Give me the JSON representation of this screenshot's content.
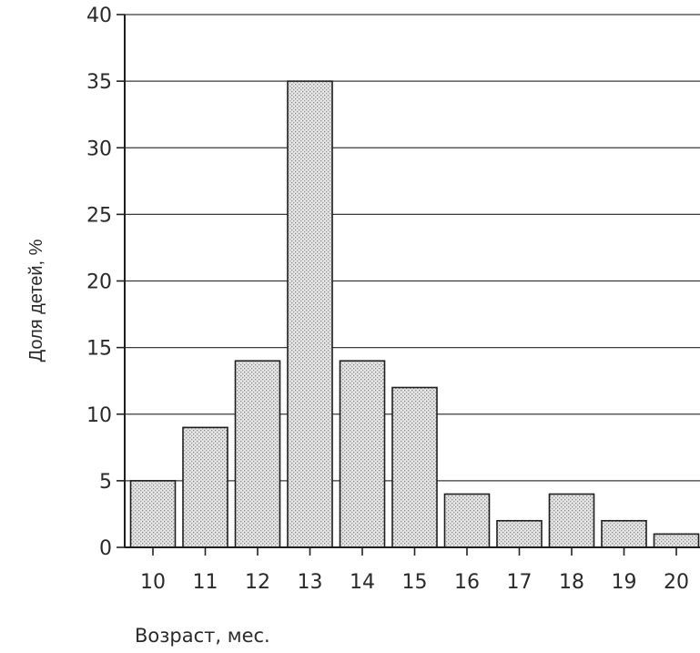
{
  "chart_data": {
    "type": "bar",
    "title": "",
    "xlabel": "Возраст, мес.",
    "ylabel": "Доля детей, %",
    "categories": [
      "10",
      "11",
      "12",
      "13",
      "14",
      "15",
      "16",
      "17",
      "18",
      "19",
      "20"
    ],
    "values": [
      5,
      9,
      14,
      35,
      14,
      12,
      4,
      2,
      4,
      2,
      1
    ],
    "ylim": [
      0,
      40
    ],
    "yticks": [
      "0",
      "5",
      "10",
      "15",
      "20",
      "25",
      "30",
      "35",
      "40"
    ],
    "grid": true,
    "legend": "none"
  }
}
